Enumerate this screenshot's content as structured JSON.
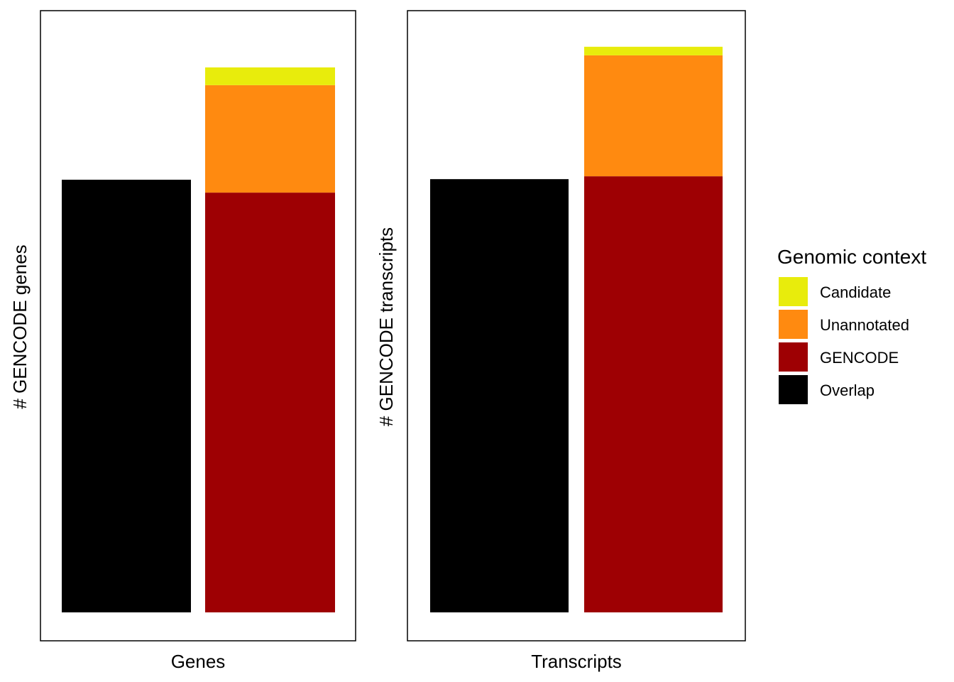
{
  "chart_data": [
    {
      "type": "bar",
      "stacked": true,
      "xlabel": "Genes",
      "ylabel": "# GENCODE genes",
      "y_ticks_shown": false,
      "ylim": [
        0,
        21000
      ],
      "bars": [
        {
          "stack": [
            {
              "series": "Overlap",
              "value": 15100
            }
          ]
        },
        {
          "stack": [
            {
              "series": "GENCODE",
              "value": 14650
            },
            {
              "series": "Unannotated",
              "value": 3750
            },
            {
              "series": "Candidate",
              "value": 620
            }
          ]
        }
      ]
    },
    {
      "type": "bar",
      "stacked": true,
      "xlabel": "Transcripts",
      "ylabel": "# GENCODE transcripts",
      "y_ticks_shown": false,
      "ylim": [
        0,
        21000
      ],
      "bars": [
        {
          "stack": [
            {
              "series": "Overlap",
              "value": 15120
            }
          ]
        },
        {
          "stack": [
            {
              "series": "GENCODE",
              "value": 15220
            },
            {
              "series": "Unannotated",
              "value": 4220
            },
            {
              "series": "Candidate",
              "value": 300
            }
          ]
        }
      ]
    }
  ],
  "legend": {
    "title": "Genomic context",
    "placement": "right",
    "items": [
      {
        "name": "Candidate",
        "color": "#e8ec0c"
      },
      {
        "name": "Unannotated",
        "color": "#ff8a10"
      },
      {
        "name": "GENCODE",
        "color": "#9e0003"
      },
      {
        "name": "Overlap",
        "color": "#000000"
      }
    ]
  }
}
